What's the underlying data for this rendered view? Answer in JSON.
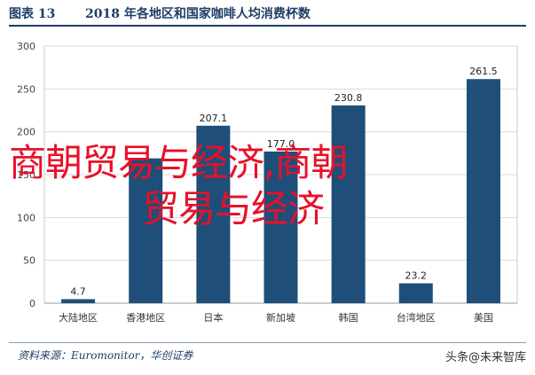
{
  "header": {
    "figure_label": "图表 13",
    "title": "2018 年各地区和国家咖啡人均消费杯数"
  },
  "chart_data": {
    "type": "bar",
    "categories": [
      "大陆地区",
      "香港地区",
      "日本",
      "新加坡",
      "韩国",
      "台湾地区",
      "美国"
    ],
    "values": [
      4.7,
      169,
      207.1,
      177.0,
      230.8,
      23.2,
      261.5
    ],
    "data_labels": [
      "4.7",
      "",
      "207.1",
      "177.0",
      "230.8",
      "23.2",
      "261.5"
    ],
    "ylim": [
      0,
      300
    ],
    "yticks": [
      "0",
      "50",
      "100",
      "150",
      "200",
      "250",
      "300"
    ],
    "grid": true,
    "title": "",
    "xlabel": "",
    "ylabel": "",
    "bar_color": "#1f4e79"
  },
  "overlay": {
    "line1": "商朝贸易与经济,商朝",
    "line2": "贸易与经济"
  },
  "footer": {
    "source": "资料来源：Euromonitor，华创证券",
    "brand": "头条@未来智库"
  }
}
